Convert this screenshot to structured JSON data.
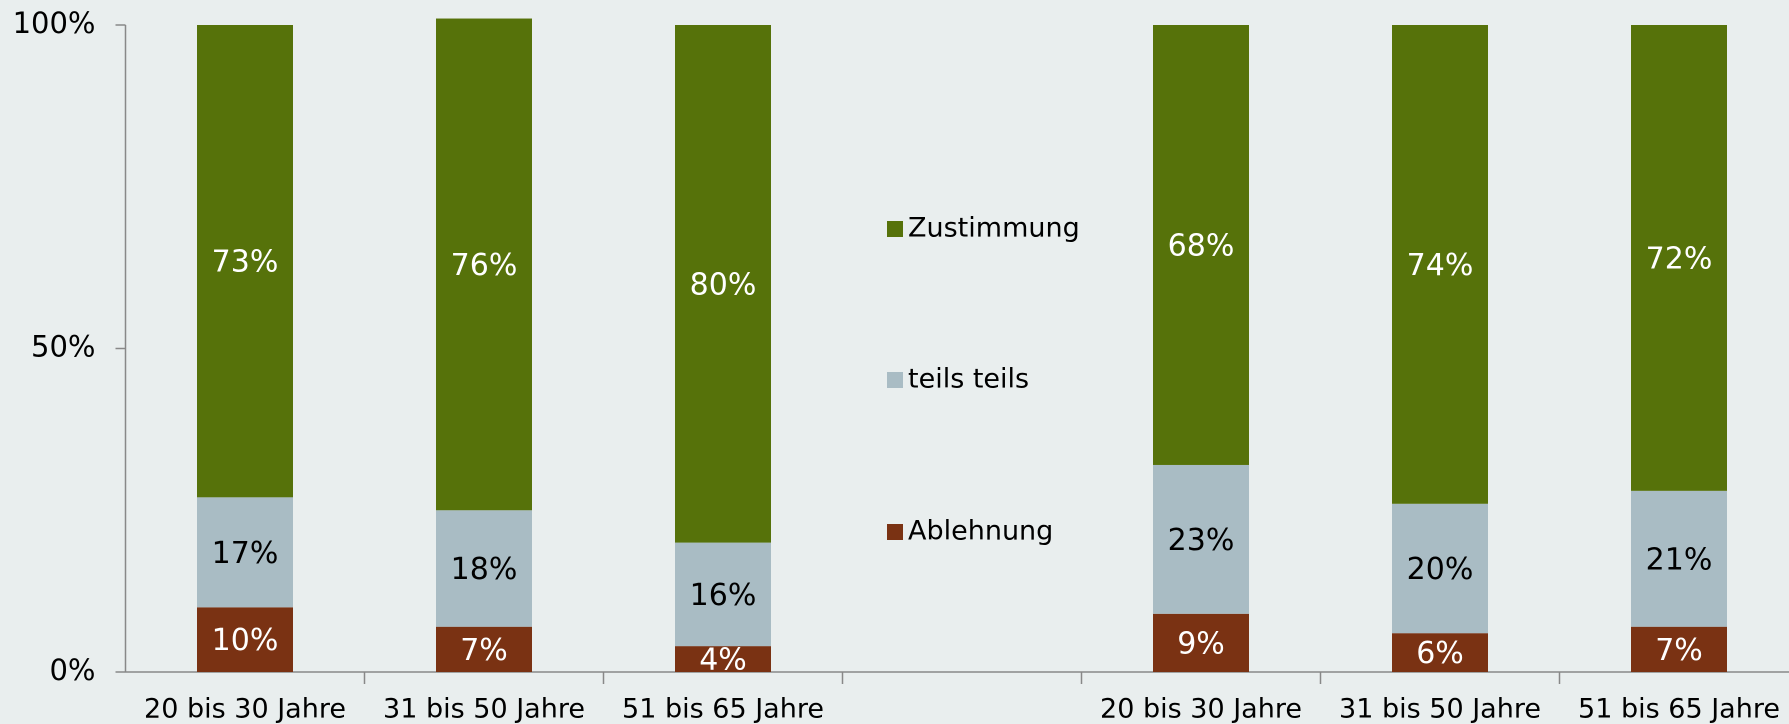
{
  "chart_data": {
    "type": "stacked_bar",
    "categories": [
      "20 bis 30 Jahre",
      "31 bis 50 Jahre",
      "51 bis 65 Jahre",
      null,
      "20 bis 30 Jahre",
      "31 bis 50 Jahre",
      "51 bis 65 Jahre"
    ],
    "series": [
      {
        "name": "Ablehnung",
        "color": "#7a3213",
        "label_color": "#ffffff",
        "values": [
          10,
          7,
          4,
          null,
          9,
          6,
          7
        ],
        "value_labels": [
          "10%",
          "7%",
          "4%",
          null,
          "9%",
          "6%",
          "7%"
        ]
      },
      {
        "name": "teils teils",
        "color": "#a9bcc4",
        "label_color": "#000000",
        "values": [
          17,
          18,
          16,
          null,
          23,
          20,
          21
        ],
        "value_labels": [
          "17%",
          "18%",
          "16%",
          null,
          "23%",
          "20%",
          "21%"
        ]
      },
      {
        "name": "Zustimmung",
        "color": "#56720a",
        "label_color": "#ffffff",
        "values": [
          73,
          76,
          80,
          null,
          68,
          74,
          72
        ],
        "value_labels": [
          "73%",
          "76%",
          "80%",
          null,
          "68%",
          "74%",
          "72%"
        ]
      }
    ],
    "ylim": [
      0,
      100
    ],
    "yticks": [
      {
        "value": 0,
        "label": "0%"
      },
      {
        "value": 50,
        "label": "50%"
      },
      {
        "value": 100,
        "label": "100%"
      }
    ],
    "legend": "center"
  }
}
